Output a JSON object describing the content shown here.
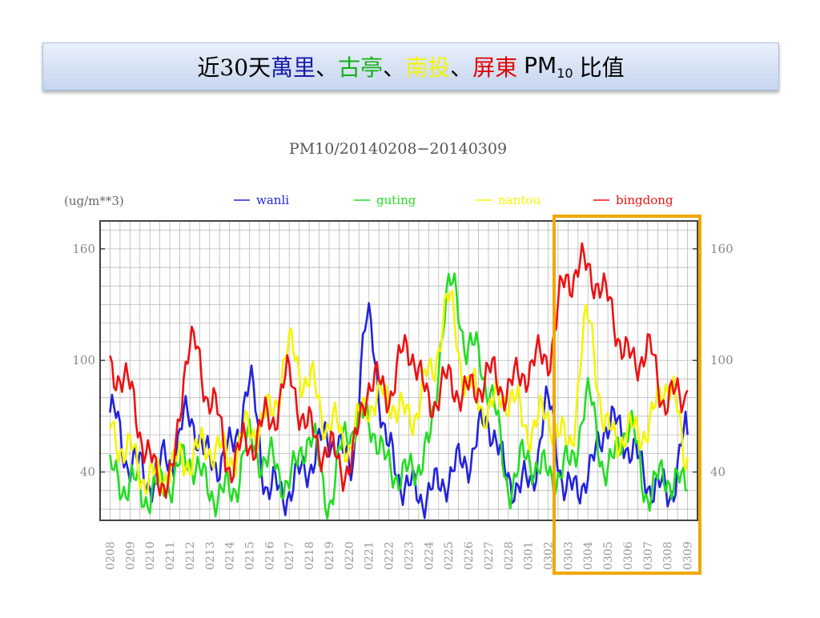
{
  "slide": {
    "title_prefix": "近30天",
    "site_1": "萬里",
    "sep_1": "、",
    "site_2": "古亭",
    "sep_2": "、",
    "site_3": "南投",
    "sep_3": "、",
    "site_4": "屏東",
    "title_pm": "PM",
    "title_sub": "10",
    "title_suffix": "比值",
    "colors": {
      "site_1": "#1a1aa8",
      "site_2": "#12b012",
      "site_3": "#f3f300",
      "site_4": "#e00000"
    }
  },
  "chart_data": {
    "type": "line",
    "title": "PM10/20140208−20140309",
    "ylabel": "(ug/m**3)",
    "ylim": [
      14,
      175
    ],
    "yticks": [
      40,
      100,
      160
    ],
    "grid": true,
    "legend_position": "top",
    "categories": [
      "0208",
      "0209",
      "0210",
      "0211",
      "0212",
      "0213",
      "0214",
      "0215",
      "0216",
      "0217",
      "0218",
      "0219",
      "0220",
      "0221",
      "0222",
      "0223",
      "0224",
      "0225",
      "0226",
      "0227",
      "0228",
      "0301",
      "0302",
      "0303",
      "0304",
      "0305",
      "0306",
      "0307",
      "0308",
      "0309"
    ],
    "highlight": {
      "from": "0303",
      "to": "0309",
      "color": "#f0a800"
    },
    "series": [
      {
        "name": "wanli",
        "color": "#2222dd",
        "values": [
          72,
          46,
          36,
          48,
          70,
          45,
          50,
          85,
          30,
          30,
          45,
          60,
          44,
          120,
          50,
          30,
          28,
          38,
          48,
          68,
          36,
          32,
          74,
          28,
          38,
          68,
          56,
          35,
          28,
          60
        ]
      },
      {
        "name": "guting",
        "color": "#22dd22",
        "values": [
          38,
          33,
          28,
          35,
          48,
          30,
          28,
          55,
          45,
          35,
          60,
          26,
          64,
          68,
          42,
          38,
          54,
          140,
          110,
          88,
          34,
          48,
          38,
          42,
          78,
          40,
          66,
          30,
          38,
          30
        ]
      },
      {
        "name": "nantou",
        "color": "#f5f500",
        "values": [
          62,
          50,
          35,
          42,
          48,
          54,
          48,
          62,
          70,
          105,
          88,
          66,
          56,
          78,
          80,
          68,
          90,
          130,
          85,
          74,
          82,
          64,
          70,
          54,
          120,
          60,
          60,
          64,
          90,
          48
        ]
      },
      {
        "name": "bingdong",
        "color": "#ee1111",
        "values": [
          98,
          84,
          44,
          34,
          110,
          82,
          45,
          56,
          68,
          90,
          62,
          50,
          42,
          88,
          84,
          108,
          78,
          88,
          82,
          92,
          85,
          96,
          104,
          146,
          150,
          132,
          100,
          104,
          78,
          84
        ]
      }
    ]
  }
}
